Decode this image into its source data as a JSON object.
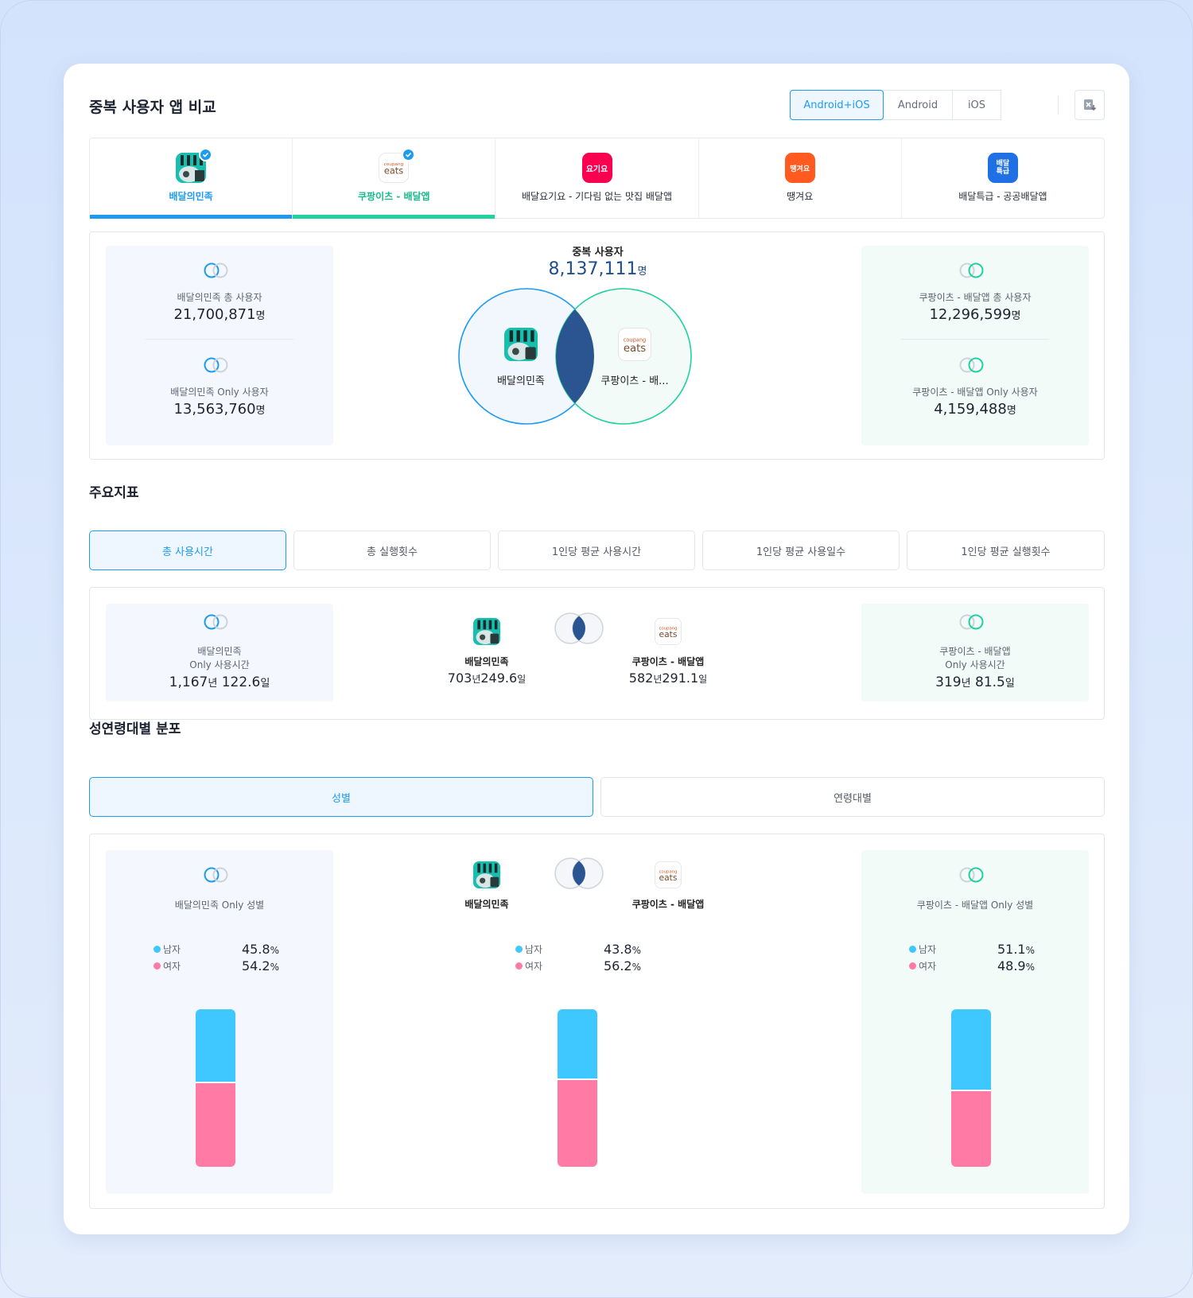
{
  "header": {
    "title": "중복 사용자 앱 비교",
    "platforms": [
      "Android+iOS",
      "Android",
      "iOS"
    ],
    "selected_platform": "Android+iOS"
  },
  "apps": [
    {
      "name": "배달의민족",
      "selected": true,
      "color": "#1d9bf0",
      "icon": "baemin-icon"
    },
    {
      "name": "쿠팡이츠 - 배달앱",
      "selected": true,
      "color": "#22d0a0",
      "icon": "coupang-eats-icon"
    },
    {
      "name": "배달요기요 - 기다림 없는 맛집 배달앱",
      "selected": false,
      "icon": "yogiyo-icon",
      "icon_text": "요기요"
    },
    {
      "name": "땡겨요",
      "selected": false,
      "icon": "ddangyo-icon",
      "icon_text": "땡겨요"
    },
    {
      "name": "배달특급 - 공공배달앱",
      "selected": false,
      "icon": "baedal-teukgeup-icon",
      "icon_text": "배달\n특급"
    }
  ],
  "overlap": {
    "label": "중복 사용자",
    "value": "8,137,111",
    "unit": "명",
    "left_circle_label": "배달의민족",
    "right_circle_label": "쿠팡이츠 - 배...",
    "left_stats": [
      {
        "label": "배달의민족 총 사용자",
        "value": "21,700,871",
        "unit": "명"
      },
      {
        "label": "배달의민족 Only 사용자",
        "value": "13,563,760",
        "unit": "명"
      }
    ],
    "right_stats": [
      {
        "label": "쿠팡이츠 - 배달앱 총 사용자",
        "value": "12,296,599",
        "unit": "명"
      },
      {
        "label": "쿠팡이츠 - 배달앱 Only 사용자",
        "value": "4,159,488",
        "unit": "명"
      }
    ]
  },
  "metrics": {
    "title": "주요지표",
    "tabs": [
      "총 사용시간",
      "총 실행횟수",
      "1인당 평균 사용시간",
      "1인당 평균 사용일수",
      "1인당 평균 실행횟수"
    ],
    "selected": "총 사용시간",
    "left": {
      "label_line1": "배달의민족",
      "label_line2": "Only 사용시간",
      "years": "1,167",
      "year_unit": "년",
      "days": "122.6",
      "day_unit": "일"
    },
    "app_a": {
      "label": "배달의민족",
      "years": "703",
      "year_unit": "년",
      "days": "249.6",
      "day_unit": "일"
    },
    "app_b": {
      "label": "쿠팡이츠 - 배달앱",
      "years": "582",
      "year_unit": "년",
      "days": "291.1",
      "day_unit": "일"
    },
    "right": {
      "label_line1": "쿠팡이츠 - 배달앱",
      "label_line2": "Only 사용시간",
      "years": "319",
      "year_unit": "년",
      "days": "81.5",
      "day_unit": "일"
    }
  },
  "demographics": {
    "title": "성연령대별 분포",
    "tabs": [
      "성별",
      "연령대별"
    ],
    "selected": "성별",
    "male_label": "남자",
    "female_label": "여자",
    "male_color": "#3fc8ff",
    "female_color": "#ff7aa5",
    "left": {
      "label": "배달의민족 Only 성별",
      "male": 45.8,
      "female": 54.2
    },
    "center": {
      "app_a": "배달의민족",
      "app_b": "쿠팡이츠 - 배달앱",
      "male": 43.8,
      "female": 56.2
    },
    "right": {
      "label": "쿠팡이츠 - 배달앱 Only 성별",
      "male": 51.1,
      "female": 48.9
    },
    "pct_unit": "%"
  }
}
